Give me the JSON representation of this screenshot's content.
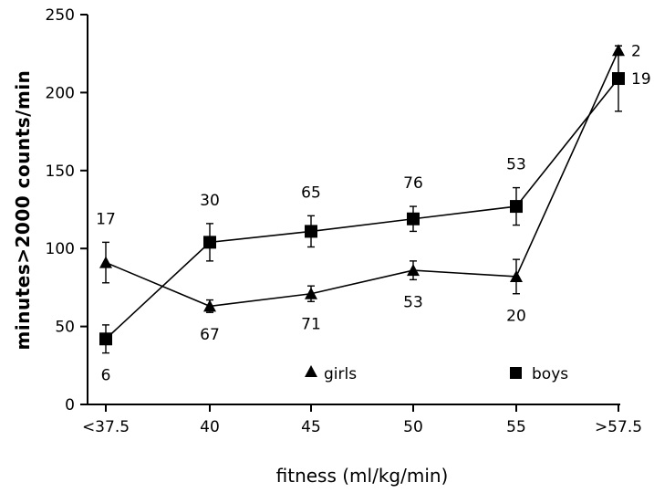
{
  "chart_data": {
    "type": "line",
    "xlabel": "fitness (ml/kg/min)",
    "ylabel": "minutes>2000 counts/min",
    "categories": [
      "<37.5",
      "40",
      "45",
      "50",
      "55",
      ">57.5"
    ],
    "ylim": [
      0,
      250
    ],
    "yticks": [
      0,
      50,
      100,
      150,
      200,
      250
    ],
    "grid": false,
    "legend_placement": "bottom",
    "series": [
      {
        "name": "girls",
        "marker": "triangle",
        "values": [
          91,
          63,
          71,
          86,
          82,
          227
        ],
        "error": [
          13,
          4,
          5,
          6,
          11,
          3
        ],
        "counts": [
          "17",
          "67",
          "71",
          "53",
          "20",
          "2"
        ],
        "count_position": [
          "above",
          "below",
          "below",
          "below",
          "below",
          "right"
        ]
      },
      {
        "name": "boys",
        "marker": "square",
        "values": [
          42,
          104,
          111,
          119,
          127,
          209
        ],
        "error": [
          9,
          12,
          10,
          8,
          12,
          21
        ],
        "counts": [
          "6",
          "30",
          "65",
          "76",
          "53",
          "19"
        ],
        "count_position": [
          "below",
          "above",
          "above",
          "above",
          "above",
          "right"
        ]
      }
    ],
    "colors": {
      "line": "#000000",
      "background": "#ffffff"
    }
  }
}
